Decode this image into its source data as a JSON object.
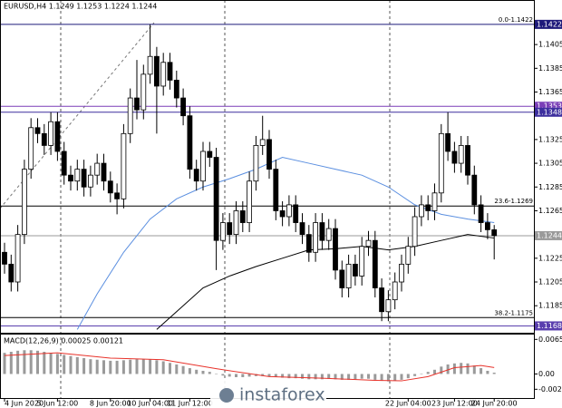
{
  "chart_data": [
    {
      "type": "candlestick",
      "title": "EURUSD,H4 1.1249 1.1253 1.1224 1.1244",
      "watermark": "instaforex",
      "ylim": [
        1.1163,
        1.1441
      ],
      "yticks": [
        1.1405,
        1.1385,
        1.1365,
        1.1325,
        1.1305,
        1.1285,
        1.1265,
        1.1225,
        1.1205,
        1.1185
      ],
      "xticks": [
        {
          "value": 0,
          "label": "4 Jun 2020"
        },
        {
          "value": 8,
          "label": "5 Jun 12:00"
        },
        {
          "value": 16,
          "label": "8 Jun 20:00"
        },
        {
          "value": 22,
          "label": "10 Jun 04:00"
        },
        {
          "value": 28,
          "label": "11 Jun 12:00"
        },
        {
          "value": 61,
          "label": "22 Jun 04:00"
        },
        {
          "value": 68,
          "label": "23 Jun 12:00"
        },
        {
          "value": 74,
          "label": "24 Jun 20:00"
        }
      ],
      "bull_color": "#ffffff",
      "bear_color": "#000000",
      "open": [
        1.123,
        1.122,
        1.1205,
        1.1245,
        1.13,
        1.1335,
        1.133,
        1.132,
        1.134,
        1.1315,
        1.1295,
        1.129,
        1.13,
        1.1285,
        1.1295,
        1.1305,
        1.129,
        1.128,
        1.1275,
        1.133,
        1.136,
        1.135,
        1.138,
        1.1395,
        1.137,
        1.139,
        1.1375,
        1.136,
        1.1345,
        1.13,
        1.129,
        1.1315,
        1.131,
        1.124,
        1.1255,
        1.1245,
        1.1265,
        1.1255,
        1.129,
        1.132,
        1.1325,
        1.13,
        1.1265,
        1.126,
        1.127,
        1.1255,
        1.1245,
        1.123,
        1.1255,
        1.124,
        1.125,
        1.1215,
        1.12,
        1.122,
        1.121,
        1.1235,
        1.124,
        1.12,
        1.118,
        1.119,
        1.1205,
        1.122,
        1.1235,
        1.126,
        1.127,
        1.1265,
        1.128,
        1.133,
        1.1315,
        1.1305,
        1.132,
        1.1295,
        1.127,
        1.1255,
        1.1249
      ],
      "high": [
        1.1238,
        1.1228,
        1.1253,
        1.1308,
        1.1343,
        1.1343,
        1.1338,
        1.1348,
        1.1348,
        1.1323,
        1.1303,
        1.1308,
        1.1308,
        1.1303,
        1.1313,
        1.1313,
        1.1298,
        1.1288,
        1.1338,
        1.1368,
        1.1392,
        1.1388,
        1.1422,
        1.1403,
        1.1398,
        1.1398,
        1.1383,
        1.1368,
        1.1353,
        1.1308,
        1.1323,
        1.1323,
        1.1318,
        1.1263,
        1.1263,
        1.1273,
        1.1273,
        1.1298,
        1.1328,
        1.1345,
        1.1333,
        1.1308,
        1.1273,
        1.1278,
        1.1278,
        1.1263,
        1.1253,
        1.1263,
        1.1263,
        1.1258,
        1.1258,
        1.1223,
        1.1228,
        1.1228,
        1.1243,
        1.1248,
        1.1248,
        1.1208,
        1.1198,
        1.1213,
        1.1228,
        1.1243,
        1.1268,
        1.1278,
        1.1278,
        1.1288,
        1.1338,
        1.1348,
        1.1323,
        1.1328,
        1.1328,
        1.1303,
        1.1278,
        1.1263,
        1.1253
      ],
      "low": [
        1.1212,
        1.1197,
        1.1197,
        1.1237,
        1.1292,
        1.1322,
        1.1312,
        1.1312,
        1.1307,
        1.1287,
        1.1282,
        1.1282,
        1.1277,
        1.1277,
        1.1287,
        1.1282,
        1.1272,
        1.1262,
        1.1267,
        1.1322,
        1.1342,
        1.1342,
        1.1372,
        1.133,
        1.1362,
        1.1367,
        1.1352,
        1.1337,
        1.1292,
        1.1282,
        1.1282,
        1.1302,
        1.1215,
        1.1232,
        1.1237,
        1.1237,
        1.1247,
        1.1247,
        1.1282,
        1.1312,
        1.1292,
        1.1257,
        1.1252,
        1.1252,
        1.1247,
        1.1237,
        1.1222,
        1.1222,
        1.1232,
        1.1232,
        1.1207,
        1.1192,
        1.1192,
        1.1202,
        1.1202,
        1.1227,
        1.1192,
        1.1172,
        1.1172,
        1.1182,
        1.1197,
        1.1212,
        1.1227,
        1.1252,
        1.1257,
        1.1257,
        1.1272,
        1.1307,
        1.1297,
        1.1297,
        1.1287,
        1.1262,
        1.1247,
        1.1241,
        1.1224
      ],
      "close": [
        1.122,
        1.1205,
        1.1245,
        1.13,
        1.1335,
        1.133,
        1.132,
        1.134,
        1.1315,
        1.1295,
        1.129,
        1.13,
        1.1285,
        1.1295,
        1.1305,
        1.129,
        1.128,
        1.1275,
        1.133,
        1.136,
        1.135,
        1.138,
        1.1395,
        1.137,
        1.139,
        1.1375,
        1.136,
        1.1345,
        1.13,
        1.129,
        1.1315,
        1.131,
        1.124,
        1.1255,
        1.1245,
        1.1265,
        1.1255,
        1.129,
        1.132,
        1.1325,
        1.13,
        1.1265,
        1.126,
        1.127,
        1.1255,
        1.1245,
        1.123,
        1.1255,
        1.124,
        1.125,
        1.1215,
        1.12,
        1.122,
        1.121,
        1.1235,
        1.124,
        1.12,
        1.118,
        1.119,
        1.1205,
        1.122,
        1.1235,
        1.126,
        1.127,
        1.1265,
        1.128,
        1.133,
        1.1315,
        1.1305,
        1.132,
        1.1295,
        1.127,
        1.1255,
        1.1249,
        1.1244
      ],
      "lines": [
        {
          "color": "#5b8fe0",
          "x": [
            11,
            14,
            18,
            22,
            26,
            30,
            34,
            38,
            42,
            46,
            50,
            54,
            58,
            62,
            66,
            70,
            74
          ],
          "values": [
            1.1165,
            1.1195,
            1.123,
            1.1258,
            1.1275,
            1.1285,
            1.1292,
            1.13,
            1.131,
            1.1305,
            1.13,
            1.1295,
            1.1285,
            1.127,
            1.1262,
            1.1258,
            1.1255
          ]
        },
        {
          "color": "#000000",
          "x": [
            23,
            26,
            30,
            34,
            38,
            42,
            46,
            50,
            54,
            58,
            62,
            66,
            70,
            74
          ],
          "values": [
            1.1165,
            1.118,
            1.12,
            1.121,
            1.1218,
            1.1225,
            1.1232,
            1.1233,
            1.1235,
            1.1232,
            1.1235,
            1.124,
            1.1245,
            1.1242
          ]
        }
      ],
      "hlines": [
        {
          "value": 1.1422,
          "color": "#1e1a7a",
          "box": true,
          "label": "0.0-1.1422"
        },
        {
          "value": 1.1353,
          "color": "#7b3fb8",
          "box": true
        },
        {
          "value": 1.1348,
          "color": "#3d2f9e",
          "box": true
        },
        {
          "value": 1.1269,
          "color": "#000000",
          "box": false,
          "label": "23.6-1.1269"
        },
        {
          "value": 1.1175,
          "color": "#000000",
          "box": false,
          "label": "38.2-1.1175"
        },
        {
          "value": 1.1168,
          "color": "#5a3fae",
          "box": true
        },
        {
          "value": 1.1244,
          "color": "#9a9a9a",
          "box": true
        }
      ]
    },
    {
      "type": "bar",
      "title": "MACD(12,26,9) 0.00025 0.00121",
      "ylim": [
        -0.00455,
        0.00746
      ],
      "yticks": [
        0.00655,
        {
          "value": 0,
          "label": "0.00"
        },
        -0.00289
      ],
      "color": "#9a9a9a",
      "values": [
        0.004,
        0.0042,
        0.0044,
        0.0045,
        0.0045,
        0.0044,
        0.0042,
        0.004,
        0.0038,
        0.0036,
        0.0034,
        0.0032,
        0.003,
        0.0028,
        0.0027,
        0.0026,
        0.0025,
        0.0025,
        0.0026,
        0.0027,
        0.0028,
        0.0028,
        0.0028,
        0.0026,
        0.0024,
        0.0021,
        0.0018,
        0.0015,
        0.0011,
        0.0008,
        0.0006,
        0.0004,
        0.0,
        -0.0003,
        -0.0005,
        -0.0006,
        -0.0006,
        -0.0005,
        -0.0004,
        -0.0004,
        -0.0005,
        -0.0006,
        -0.0007,
        -0.0008,
        -0.0008,
        -0.0009,
        -0.001,
        -0.001,
        -0.001,
        -0.0009,
        -0.001,
        -0.0011,
        -0.0011,
        -0.001,
        -0.0009,
        -0.0009,
        -0.0011,
        -0.0013,
        -0.0014,
        -0.0013,
        -0.0011,
        -0.0008,
        -0.0004,
        0.0,
        0.0004,
        0.0008,
        0.0014,
        0.0018,
        0.002,
        0.0021,
        0.002,
        0.0016,
        0.0011,
        0.0006,
        0.00025
      ],
      "signal": {
        "color": "#e8322a",
        "x": [
          0,
          8,
          16,
          24,
          32,
          40,
          48,
          56,
          60,
          64,
          68,
          72,
          74
        ],
        "values": [
          0.0035,
          0.004,
          0.003,
          0.0027,
          0.001,
          -0.0005,
          -0.0008,
          -0.0012,
          -0.0013,
          -0.0005,
          0.0012,
          0.0016,
          0.00121
        ]
      }
    }
  ]
}
